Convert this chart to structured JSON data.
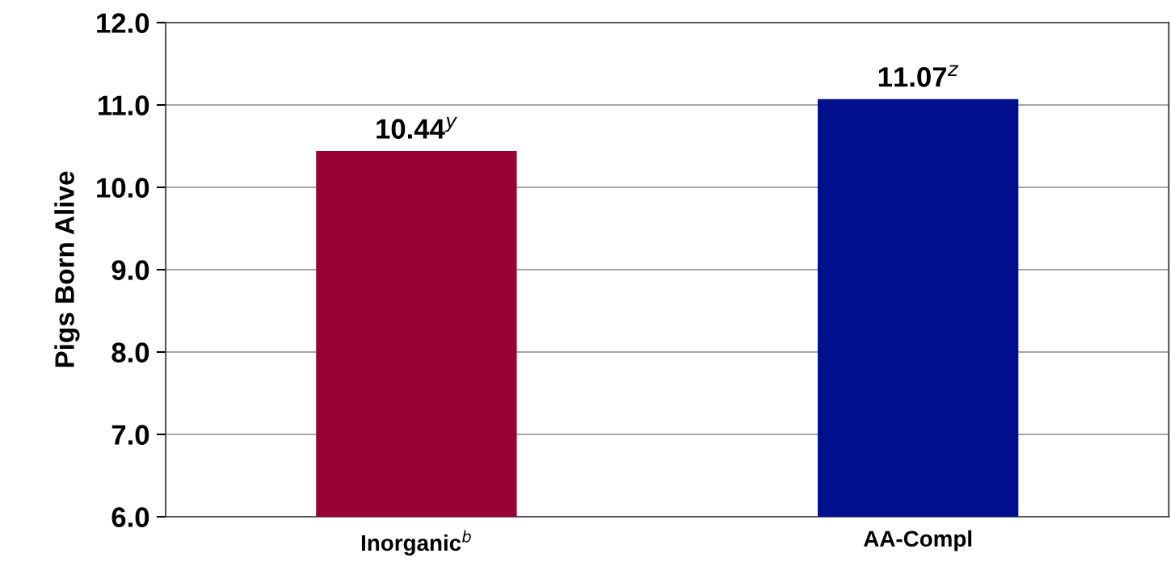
{
  "chart_data": {
    "type": "bar",
    "ylabel": "Pigs Born Alive",
    "categories": [
      "Inorganic$^{b}$",
      "AA-Compl"
    ],
    "values": [
      10.44,
      11.07
    ],
    "colors": [
      "#990033",
      "#000f8c"
    ],
    "value_labels": [
      "10.44$^{y}$",
      "11.07$^{z}$"
    ],
    "ylim": [
      6.0,
      12.0
    ],
    "yticks": [
      {
        "value": 6,
        "label": "6.0"
      },
      {
        "value": 7,
        "label": "7.0"
      },
      {
        "value": 8,
        "label": "8.0"
      },
      {
        "value": 9,
        "label": "9.0"
      },
      {
        "value": 10,
        "label": "10.0"
      },
      {
        "value": 11,
        "label": "11.0"
      },
      {
        "value": 12,
        "label": "12.0"
      }
    ],
    "grid": "y"
  }
}
